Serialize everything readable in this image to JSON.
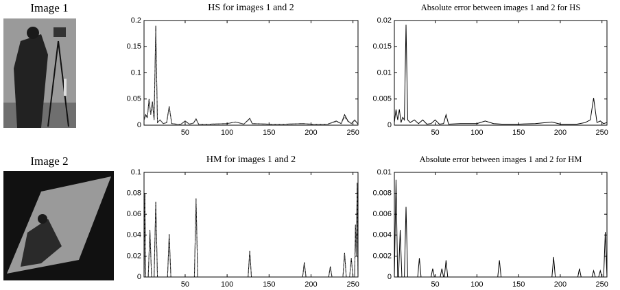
{
  "images": [
    {
      "label": "Image 1"
    },
    {
      "label": "Image 2"
    }
  ],
  "chart_data": [
    {
      "type": "line",
      "title": "HS for images 1 and 2",
      "x": [
        1,
        3,
        5,
        7,
        9,
        11,
        13,
        15,
        17,
        20,
        24,
        28,
        31,
        34,
        40,
        45,
        50,
        55,
        60,
        63,
        66,
        80,
        100,
        110,
        120,
        127,
        130,
        150,
        170,
        190,
        200,
        220,
        230,
        236,
        240,
        244,
        248,
        252,
        256
      ],
      "series": [
        {
          "color": "#000000",
          "dash": false,
          "values": [
            0.01,
            0.02,
            0.015,
            0.05,
            0.02,
            0.045,
            0.01,
            0.19,
            0.005,
            0.01,
            0.003,
            0.005,
            0.036,
            0.003,
            0.002,
            0.002,
            0.008,
            0.002,
            0.004,
            0.012,
            0.002,
            0.002,
            0.003,
            0.006,
            0.002,
            0.013,
            0.003,
            0.002,
            0.002,
            0.003,
            0.002,
            0.002,
            0.008,
            0.003,
            0.02,
            0.008,
            0.003,
            0.01,
            0.002
          ]
        },
        {
          "color": "#555555",
          "dash": true,
          "values": [
            0.01,
            0.018,
            0.014,
            0.048,
            0.02,
            0.043,
            0.01,
            0.18,
            0.005,
            0.01,
            0.003,
            0.005,
            0.035,
            0.003,
            0.002,
            0.002,
            0.007,
            0.002,
            0.004,
            0.011,
            0.002,
            0.002,
            0.003,
            0.006,
            0.002,
            0.012,
            0.003,
            0.002,
            0.002,
            0.003,
            0.002,
            0.002,
            0.007,
            0.003,
            0.016,
            0.007,
            0.003,
            0.009,
            0.002
          ]
        }
      ],
      "xlim": [
        1,
        256
      ],
      "ylim": [
        0,
        0.2
      ],
      "xticks": [
        50,
        100,
        150,
        200,
        250
      ],
      "yticks": [
        0,
        0.05,
        0.1,
        0.15,
        0.2
      ]
    },
    {
      "type": "line",
      "title": "Absolute error between images 1 and 2 for HS",
      "x": [
        1,
        3,
        5,
        7,
        9,
        11,
        13,
        15,
        17,
        20,
        25,
        30,
        35,
        40,
        45,
        50,
        55,
        60,
        63,
        66,
        80,
        100,
        110,
        120,
        130,
        150,
        170,
        190,
        200,
        220,
        230,
        236,
        240,
        244,
        248,
        252,
        256
      ],
      "series": [
        {
          "color": "#000000",
          "dash": false,
          "values": [
            0.0005,
            0.003,
            0.001,
            0.003,
            0.0005,
            0.0015,
            0.001,
            0.0192,
            0.001,
            0.0005,
            0.001,
            0.0003,
            0.001,
            0.0002,
            0.0003,
            0.001,
            0.0002,
            0.0003,
            0.002,
            0.0002,
            0.0003,
            0.0003,
            0.0008,
            0.0003,
            0.0002,
            0.0002,
            0.0003,
            0.0006,
            0.0002,
            0.0002,
            0.0005,
            0.001,
            0.0052,
            0.0005,
            0.0008,
            0.0003,
            0.0005
          ]
        }
      ],
      "xlim": [
        1,
        256
      ],
      "ylim": [
        0,
        0.02
      ],
      "xticks": [
        50,
        100,
        150,
        200,
        250
      ],
      "yticks": [
        0,
        0.005,
        0.01,
        0.015,
        0.02
      ]
    },
    {
      "type": "line",
      "title": "HM for images 1 and 2",
      "x": [
        1,
        2,
        3,
        6,
        8,
        10,
        13,
        15,
        17,
        29,
        31,
        33,
        61,
        63,
        65,
        125,
        127,
        129,
        190,
        192,
        194,
        221,
        223,
        225,
        238,
        240,
        242,
        246,
        248,
        250,
        252,
        253,
        254,
        255,
        256
      ],
      "series": [
        {
          "color": "#000000",
          "dash": false,
          "values": [
            0,
            0.08,
            0,
            0,
            0.045,
            0,
            0,
            0.072,
            0,
            0,
            0.041,
            0,
            0,
            0.075,
            0,
            0,
            0.025,
            0,
            0,
            0.014,
            0,
            0,
            0.01,
            0,
            0,
            0.023,
            0,
            0,
            0.018,
            0,
            0,
            0.05,
            0.02,
            0.09,
            0
          ]
        },
        {
          "color": "#555555",
          "dash": true,
          "values": [
            0,
            0.076,
            0,
            0,
            0.044,
            0,
            0,
            0.07,
            0,
            0,
            0.04,
            0,
            0,
            0.074,
            0,
            0,
            0.024,
            0,
            0,
            0.013,
            0,
            0,
            0.009,
            0,
            0,
            0.022,
            0,
            0,
            0.017,
            0,
            0,
            0.05,
            0.02,
            0.088,
            0
          ]
        }
      ],
      "xlim": [
        1,
        256
      ],
      "ylim": [
        0,
        0.1
      ],
      "xticks": [
        50,
        100,
        150,
        200,
        250
      ],
      "yticks": [
        0,
        0.02,
        0.04,
        0.06,
        0.08,
        0.1
      ]
    },
    {
      "type": "line",
      "title": "Absolute error between images 1 and 2 for HM",
      "x": [
        1,
        3,
        5,
        6,
        8,
        10,
        13,
        15,
        17,
        29,
        31,
        33,
        45,
        47,
        49,
        56,
        58,
        60,
        61,
        63,
        65,
        125,
        127,
        129,
        190,
        192,
        194,
        221,
        223,
        225,
        238,
        240,
        242,
        246,
        248,
        250,
        252,
        254,
        256
      ],
      "series": [
        {
          "color": "#000000",
          "dash": false,
          "values": [
            0,
            0.0093,
            0,
            0,
            0.0045,
            0,
            0,
            0.0067,
            0,
            0,
            0.0018,
            0,
            0,
            0.0008,
            0,
            0,
            0.0008,
            0,
            0,
            0.0016,
            0,
            0,
            0.0016,
            0,
            0,
            0.0019,
            0,
            0,
            0.0008,
            0,
            0,
            0.0006,
            0,
            0,
            0.0006,
            0,
            0,
            0.0043,
            0
          ]
        }
      ],
      "xlim": [
        1,
        256
      ],
      "ylim": [
        0,
        0.01
      ],
      "xticks": [
        50,
        100,
        150,
        200,
        250
      ],
      "yticks": [
        0,
        0.002,
        0.004,
        0.006,
        0.008,
        0.01
      ]
    }
  ]
}
